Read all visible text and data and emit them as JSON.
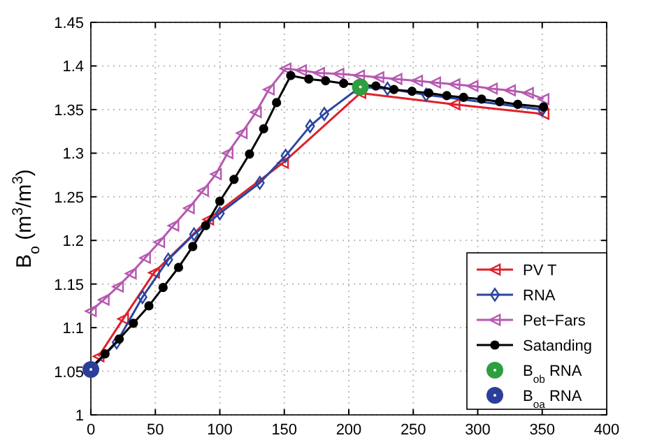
{
  "chart_data": {
    "type": "line",
    "ylabel": "B$_{o}$ (m$^{3}$/m$^{3}$)",
    "xlim": [
      0,
      400
    ],
    "ylim": [
      1,
      1.45
    ],
    "xticks": [
      0,
      50,
      100,
      150,
      200,
      250,
      300,
      350,
      400
    ],
    "yticks": [
      1,
      1.05,
      1.1,
      1.15,
      1.2,
      1.25,
      1.3,
      1.35,
      1.4,
      1.45
    ],
    "grid": true,
    "legend": "bottom right",
    "line_style": "solid",
    "series": [
      {
        "name": "PV T",
        "color": "#e0202a",
        "marker": "triangle",
        "x": [
          6,
          25,
          49,
          91,
          149,
          209,
          282,
          351
        ],
        "values": [
          1.067,
          1.11,
          1.163,
          1.224,
          1.289,
          1.369,
          1.356,
          1.345
        ]
      },
      {
        "name": "RNA",
        "color": "#2a45a0",
        "marker": "diamond",
        "x": [
          0,
          20,
          40,
          60,
          80,
          100,
          131,
          151,
          170,
          181,
          209,
          230,
          260,
          350
        ],
        "values": [
          1.052,
          1.083,
          1.135,
          1.178,
          1.207,
          1.231,
          1.266,
          1.297,
          1.331,
          1.345,
          1.376,
          1.374,
          1.367,
          1.35
        ]
      },
      {
        "name": "Pet−Fars",
        "color": "#b659b0",
        "marker": "triangle",
        "x": [
          0,
          10,
          21,
          31,
          42,
          53,
          64,
          76,
          87,
          97,
          106,
          117,
          128,
          138,
          151,
          163,
          177,
          192,
          208,
          223,
          237,
          253,
          267,
          282,
          296,
          311,
          325,
          339,
          351
        ],
        "values": [
          1.119,
          1.132,
          1.147,
          1.162,
          1.18,
          1.198,
          1.217,
          1.237,
          1.257,
          1.276,
          1.3,
          1.323,
          1.347,
          1.373,
          1.397,
          1.395,
          1.392,
          1.391,
          1.389,
          1.387,
          1.385,
          1.383,
          1.381,
          1.379,
          1.377,
          1.374,
          1.372,
          1.369,
          1.362
        ]
      },
      {
        "name": "Satanding",
        "color": "#000000",
        "marker": "circle",
        "x": [
          0,
          11,
          22,
          33,
          45,
          56,
          68,
          79,
          89,
          100,
          111,
          123,
          134,
          144,
          155,
          169,
          182,
          196,
          208,
          221,
          235,
          249,
          262,
          276,
          289,
          303,
          317,
          331,
          351
        ],
        "values": [
          1.054,
          1.07,
          1.087,
          1.105,
          1.125,
          1.146,
          1.169,
          1.193,
          1.217,
          1.245,
          1.27,
          1.299,
          1.328,
          1.358,
          1.389,
          1.385,
          1.383,
          1.38,
          null,
          1.377,
          1.373,
          1.371,
          1.369,
          1.366,
          1.364,
          1.362,
          1.359,
          1.356,
          1.353
        ]
      },
      {
        "name": "B$_{ob}$ RNA",
        "type": "scatter",
        "color": "#2e9e3e",
        "marker": "circle",
        "x": [
          209
        ],
        "values": [
          1.376
        ]
      },
      {
        "name": "B$_{oa}$ RNA",
        "type": "scatter",
        "color": "#2b3f9a",
        "marker": "circle",
        "x": [
          0
        ],
        "values": [
          1.052
        ]
      }
    ]
  }
}
